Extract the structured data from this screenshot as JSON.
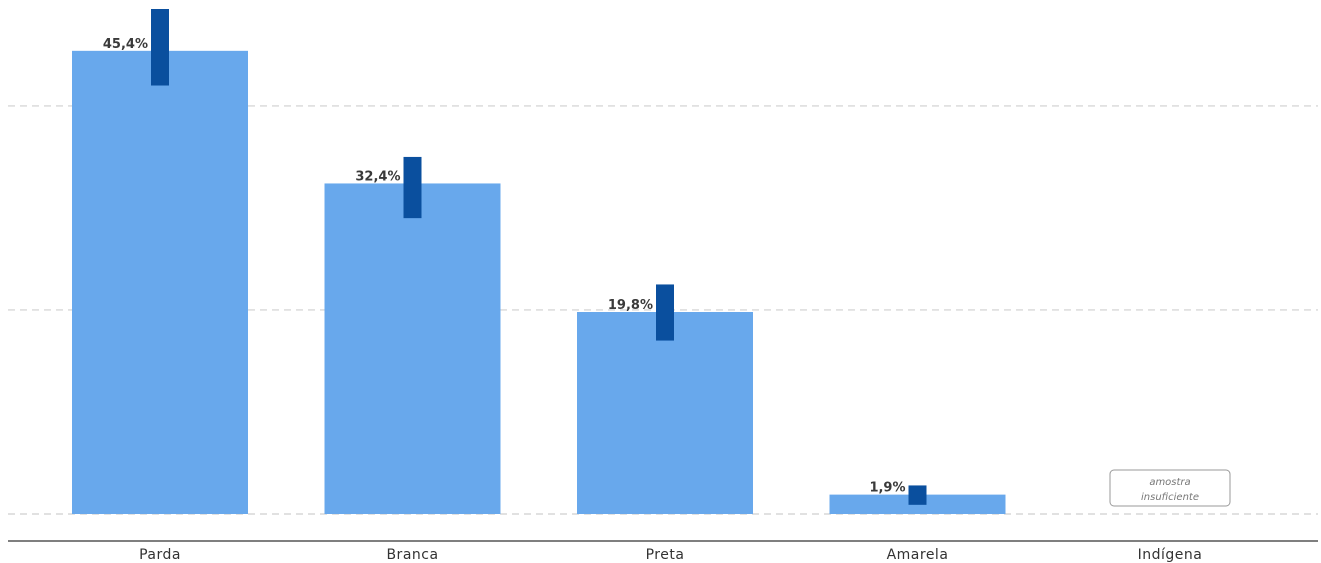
{
  "chart_data": {
    "type": "bar",
    "categories": [
      "Parda",
      "Branca",
      "Preta",
      "Amarela",
      "Indígena"
    ],
    "values": [
      45.4,
      32.4,
      19.8,
      1.9,
      null
    ],
    "value_labels": [
      "45,4%",
      "32,4%",
      "19,8%",
      "1,9%",
      ""
    ],
    "error_ranges": [
      [
        42.0,
        49.5
      ],
      [
        29.0,
        35.0
      ],
      [
        17.0,
        22.5
      ],
      [
        0.9,
        2.8
      ],
      null
    ],
    "notes": {
      "Indígena": {
        "line1": "amostra",
        "line2": "insuficiente"
      }
    },
    "ylim": [
      0,
      49.5
    ],
    "gridlines": [
      20,
      40
    ],
    "grid": true,
    "legend": "none",
    "colors": {
      "bar": "#68a8ec",
      "error_bar": "#0a4f9e",
      "grid": "#cfcfcf",
      "axis": "#555555"
    }
  }
}
